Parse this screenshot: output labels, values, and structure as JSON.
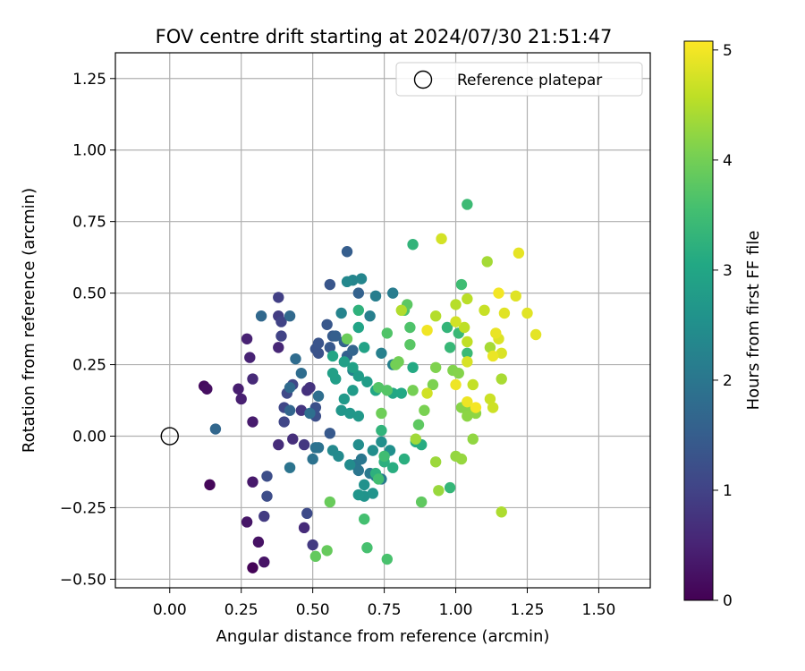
{
  "chart_data": {
    "type": "scatter",
    "title": "FOV centre drift starting at 2024/07/30 21:51:47",
    "xlabel": "Angular distance from reference (arcmin)",
    "ylabel": "Rotation from reference (arcmin)",
    "xlim": [
      -0.19,
      1.68
    ],
    "ylim": [
      -0.53,
      1.34
    ],
    "xticks": [
      0.0,
      0.25,
      0.5,
      0.75,
      1.0,
      1.25,
      1.5
    ],
    "xtick_labels": [
      "0.00",
      "0.25",
      "0.50",
      "0.75",
      "1.00",
      "1.25",
      "1.50"
    ],
    "yticks": [
      -0.5,
      -0.25,
      0.0,
      0.25,
      0.5,
      0.75,
      1.0,
      1.25
    ],
    "ytick_labels": [
      "−0.50",
      "−0.25",
      "0.00",
      "0.25",
      "0.50",
      "0.75",
      "1.00",
      "1.25"
    ],
    "grid": true,
    "legend": {
      "position": "top-right",
      "entries": [
        "Reference platepar"
      ]
    },
    "reference_point": {
      "x": 0.0,
      "y": 0.0,
      "label": "Reference platepar"
    },
    "colorbar": {
      "label": "Hours from first FF file",
      "min": 0,
      "max": 5.08,
      "ticks": [
        0,
        1,
        2,
        3,
        4,
        5
      ],
      "tick_labels": [
        "0",
        "1",
        "2",
        "3",
        "4",
        "5"
      ],
      "colormap": "viridis"
    },
    "points": [
      [
        0.29,
        -0.46,
        0.05
      ],
      [
        0.14,
        -0.17,
        0.08
      ],
      [
        0.12,
        0.175,
        0.15
      ],
      [
        0.13,
        0.165,
        0.2
      ],
      [
        0.31,
        -0.37,
        0.25
      ],
      [
        0.33,
        -0.44,
        0.28
      ],
      [
        0.27,
        -0.3,
        0.3
      ],
      [
        0.29,
        -0.16,
        0.35
      ],
      [
        0.29,
        0.05,
        0.38
      ],
      [
        0.24,
        0.165,
        0.42
      ],
      [
        0.25,
        0.13,
        0.45
      ],
      [
        0.27,
        0.34,
        0.48
      ],
      [
        0.28,
        0.275,
        0.5
      ],
      [
        0.38,
        0.31,
        0.55
      ],
      [
        0.29,
        0.2,
        0.6
      ],
      [
        0.47,
        -0.32,
        0.62
      ],
      [
        0.38,
        -0.03,
        0.65
      ],
      [
        0.43,
        -0.01,
        0.68
      ],
      [
        0.48,
        0.16,
        0.72
      ],
      [
        0.49,
        0.17,
        0.75
      ],
      [
        0.46,
        0.09,
        0.78
      ],
      [
        0.47,
        -0.03,
        0.82
      ],
      [
        0.5,
        -0.38,
        0.85
      ],
      [
        0.33,
        -0.28,
        0.88
      ],
      [
        0.38,
        0.42,
        0.9
      ],
      [
        0.38,
        0.485,
        0.95
      ],
      [
        0.39,
        0.4,
        1.0
      ],
      [
        0.39,
        0.35,
        1.0
      ],
      [
        0.4,
        0.05,
        1.05
      ],
      [
        0.4,
        0.1,
        1.08
      ],
      [
        0.43,
        0.18,
        1.1
      ],
      [
        0.41,
        0.15,
        1.12
      ],
      [
        0.48,
        -0.27,
        1.15
      ],
      [
        0.34,
        -0.21,
        1.18
      ],
      [
        0.34,
        -0.14,
        1.2
      ],
      [
        0.51,
        0.07,
        1.22
      ],
      [
        0.51,
        0.1,
        1.25
      ],
      [
        0.52,
        0.29,
        1.28
      ],
      [
        0.51,
        0.305,
        1.3
      ],
      [
        0.52,
        0.325,
        1.32
      ],
      [
        0.56,
        0.53,
        1.35
      ],
      [
        0.55,
        0.39,
        1.38
      ],
      [
        0.56,
        0.31,
        1.4
      ],
      [
        0.56,
        0.01,
        1.42
      ],
      [
        0.57,
        0.35,
        1.45
      ],
      [
        0.62,
        0.645,
        1.5
      ],
      [
        0.58,
        0.35,
        1.52
      ],
      [
        0.62,
        0.28,
        1.55
      ],
      [
        0.66,
        0.5,
        1.58
      ],
      [
        0.61,
        0.33,
        1.6
      ],
      [
        0.64,
        0.3,
        1.62
      ],
      [
        0.42,
        0.09,
        1.65
      ],
      [
        0.16,
        0.025,
        1.68
      ],
      [
        0.32,
        0.42,
        1.7
      ],
      [
        0.42,
        0.42,
        1.72
      ],
      [
        0.42,
        0.17,
        1.75
      ],
      [
        0.44,
        0.27,
        1.78
      ],
      [
        0.46,
        0.22,
        1.8
      ],
      [
        0.52,
        0.14,
        1.82
      ],
      [
        0.49,
        0.08,
        1.85
      ],
      [
        0.51,
        -0.04,
        1.88
      ],
      [
        0.5,
        -0.08,
        1.9
      ],
      [
        0.52,
        -0.04,
        1.92
      ],
      [
        0.42,
        -0.11,
        1.95
      ],
      [
        0.65,
        -0.1,
        1.98
      ],
      [
        0.66,
        -0.12,
        2.0
      ],
      [
        0.67,
        -0.08,
        2.02
      ],
      [
        0.7,
        -0.13,
        2.05
      ],
      [
        0.72,
        -0.14,
        2.08
      ],
      [
        0.74,
        -0.15,
        2.1
      ],
      [
        0.78,
        0.5,
        2.12
      ],
      [
        0.72,
        0.49,
        2.15
      ],
      [
        0.7,
        0.42,
        2.18
      ],
      [
        0.74,
        0.29,
        2.2
      ],
      [
        0.78,
        0.25,
        2.22
      ],
      [
        0.64,
        0.23,
        2.25
      ],
      [
        0.6,
        0.43,
        2.28
      ],
      [
        0.64,
        0.545,
        2.3
      ],
      [
        0.67,
        0.55,
        2.32
      ],
      [
        0.62,
        0.54,
        2.35
      ],
      [
        0.57,
        -0.05,
        2.38
      ],
      [
        0.59,
        -0.07,
        2.4
      ],
      [
        0.63,
        -0.1,
        2.42
      ],
      [
        0.66,
        -0.03,
        2.45
      ],
      [
        0.71,
        -0.05,
        2.48
      ],
      [
        0.74,
        -0.02,
        2.5
      ],
      [
        0.77,
        -0.05,
        2.52
      ],
      [
        0.68,
        -0.17,
        2.55
      ],
      [
        0.68,
        -0.21,
        2.58
      ],
      [
        0.71,
        -0.2,
        2.6
      ],
      [
        0.66,
        -0.205,
        2.62
      ],
      [
        0.6,
        0.09,
        2.65
      ],
      [
        0.63,
        0.08,
        2.68
      ],
      [
        0.66,
        0.07,
        2.7
      ],
      [
        0.61,
        0.13,
        2.72
      ],
      [
        0.64,
        0.16,
        2.75
      ],
      [
        0.66,
        0.21,
        2.78
      ],
      [
        0.69,
        0.19,
        2.8
      ],
      [
        0.58,
        0.2,
        2.82
      ],
      [
        0.57,
        0.22,
        2.85
      ],
      [
        0.61,
        0.26,
        2.88
      ],
      [
        0.64,
        0.24,
        2.9
      ],
      [
        0.68,
        0.31,
        2.92
      ],
      [
        0.66,
        0.38,
        2.95
      ],
      [
        0.57,
        0.28,
        2.98
      ],
      [
        0.72,
        0.16,
        3.0
      ],
      [
        0.78,
        0.15,
        3.02
      ],
      [
        0.81,
        0.15,
        3.05
      ],
      [
        0.85,
        0.24,
        3.08
      ],
      [
        0.86,
        -0.02,
        3.1
      ],
      [
        0.88,
        -0.03,
        3.12
      ],
      [
        0.78,
        -0.11,
        3.15
      ],
      [
        0.82,
        -0.08,
        3.18
      ],
      [
        0.75,
        -0.09,
        3.2
      ],
      [
        0.72,
        -0.13,
        3.22
      ],
      [
        0.66,
        0.44,
        3.25
      ],
      [
        0.74,
        0.02,
        3.28
      ],
      [
        0.85,
        0.67,
        3.3
      ],
      [
        0.97,
        0.38,
        3.32
      ],
      [
        0.98,
        -0.18,
        3.35
      ],
      [
        0.98,
        0.31,
        3.38
      ],
      [
        1.01,
        0.36,
        3.4
      ],
      [
        1.04,
        0.29,
        3.42
      ],
      [
        1.04,
        0.81,
        3.45
      ],
      [
        1.02,
        0.53,
        3.48
      ],
      [
        0.75,
        -0.07,
        3.5
      ],
      [
        0.73,
        -0.15,
        3.52
      ],
      [
        0.68,
        -0.29,
        3.55
      ],
      [
        0.69,
        -0.39,
        3.58
      ],
      [
        0.76,
        -0.43,
        3.6
      ],
      [
        0.82,
        0.44,
        3.62
      ],
      [
        0.84,
        0.38,
        3.65
      ],
      [
        0.76,
        0.36,
        3.68
      ],
      [
        0.73,
        0.17,
        3.7
      ],
      [
        0.76,
        0.16,
        3.72
      ],
      [
        0.84,
        0.32,
        3.75
      ],
      [
        0.83,
        0.46,
        3.78
      ],
      [
        0.87,
        0.04,
        3.8
      ],
      [
        0.88,
        -0.23,
        3.82
      ],
      [
        0.51,
        -0.42,
        3.85
      ],
      [
        0.55,
        -0.4,
        3.88
      ],
      [
        0.56,
        -0.23,
        3.9
      ],
      [
        0.62,
        0.34,
        3.92
      ],
      [
        0.74,
        0.08,
        3.95
      ],
      [
        0.8,
        0.26,
        3.98
      ],
      [
        0.79,
        0.25,
        4.0
      ],
      [
        0.85,
        0.16,
        4.02
      ],
      [
        0.89,
        0.09,
        4.05
      ],
      [
        0.92,
        0.18,
        4.08
      ],
      [
        0.93,
        0.24,
        4.1
      ],
      [
        0.99,
        0.23,
        4.12
      ],
      [
        1.01,
        0.22,
        4.14
      ],
      [
        1.02,
        0.1,
        4.16
      ],
      [
        1.04,
        0.09,
        4.18
      ],
      [
        1.04,
        0.07,
        4.2
      ],
      [
        1.07,
        0.08,
        4.22
      ],
      [
        1.06,
        -0.01,
        4.24
      ],
      [
        1.0,
        -0.07,
        4.26
      ],
      [
        1.02,
        -0.08,
        4.28
      ],
      [
        0.94,
        -0.19,
        4.3
      ],
      [
        0.93,
        -0.09,
        4.32
      ],
      [
        0.86,
        -0.01,
        4.35
      ],
      [
        1.11,
        0.61,
        4.38
      ],
      [
        1.12,
        0.31,
        4.4
      ],
      [
        1.16,
        0.2,
        4.42
      ],
      [
        1.16,
        -0.265,
        4.45
      ],
      [
        0.81,
        0.44,
        4.48
      ],
      [
        0.93,
        0.42,
        4.5
      ],
      [
        1.0,
        0.46,
        4.52
      ],
      [
        1.04,
        0.48,
        4.55
      ],
      [
        1.03,
        0.38,
        4.58
      ],
      [
        1.04,
        0.33,
        4.6
      ],
      [
        1.06,
        0.18,
        4.62
      ],
      [
        1.1,
        0.44,
        4.65
      ],
      [
        1.12,
        0.13,
        4.68
      ],
      [
        1.13,
        0.1,
        4.7
      ],
      [
        0.9,
        0.15,
        4.72
      ],
      [
        1.0,
        0.4,
        4.74
      ],
      [
        0.95,
        0.69,
        4.75
      ],
      [
        1.04,
        0.26,
        4.78
      ],
      [
        1.16,
        0.29,
        4.8
      ],
      [
        1.15,
        0.34,
        4.82
      ],
      [
        1.21,
        0.49,
        4.84
      ],
      [
        1.17,
        0.43,
        4.85
      ],
      [
        1.25,
        0.43,
        4.86
      ],
      [
        1.28,
        0.355,
        4.88
      ],
      [
        1.22,
        0.64,
        4.9
      ],
      [
        1.14,
        0.36,
        4.92
      ],
      [
        1.13,
        0.28,
        4.94
      ],
      [
        1.04,
        0.12,
        4.95
      ],
      [
        1.0,
        0.18,
        4.96
      ],
      [
        0.9,
        0.37,
        4.98
      ],
      [
        1.15,
        0.5,
        5.0
      ],
      [
        1.07,
        0.1,
        5.02
      ]
    ]
  }
}
